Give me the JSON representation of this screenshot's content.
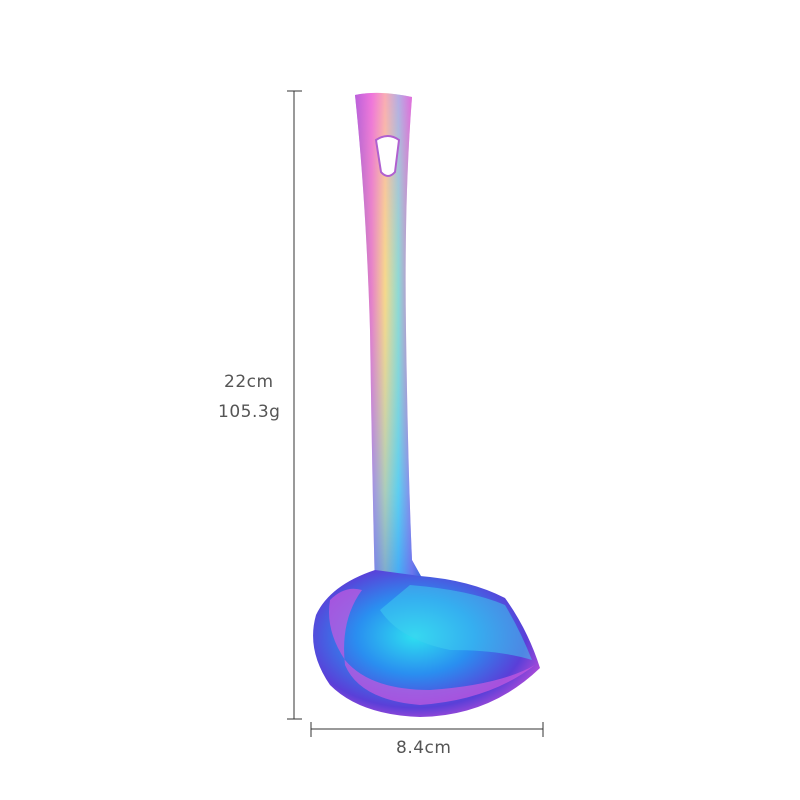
{
  "product": {
    "name_icon": "rainbow-gravy-ladle",
    "colors": [
      "#d64fd8",
      "#3b7bf0",
      "#27c9e8",
      "#f2c86a",
      "#7a3fd8"
    ]
  },
  "dimensions": {
    "height_label": "22cm",
    "weight_label": "105.3g",
    "width_label": "8.4cm",
    "line_color": "#333333",
    "text_color": "#555555"
  }
}
